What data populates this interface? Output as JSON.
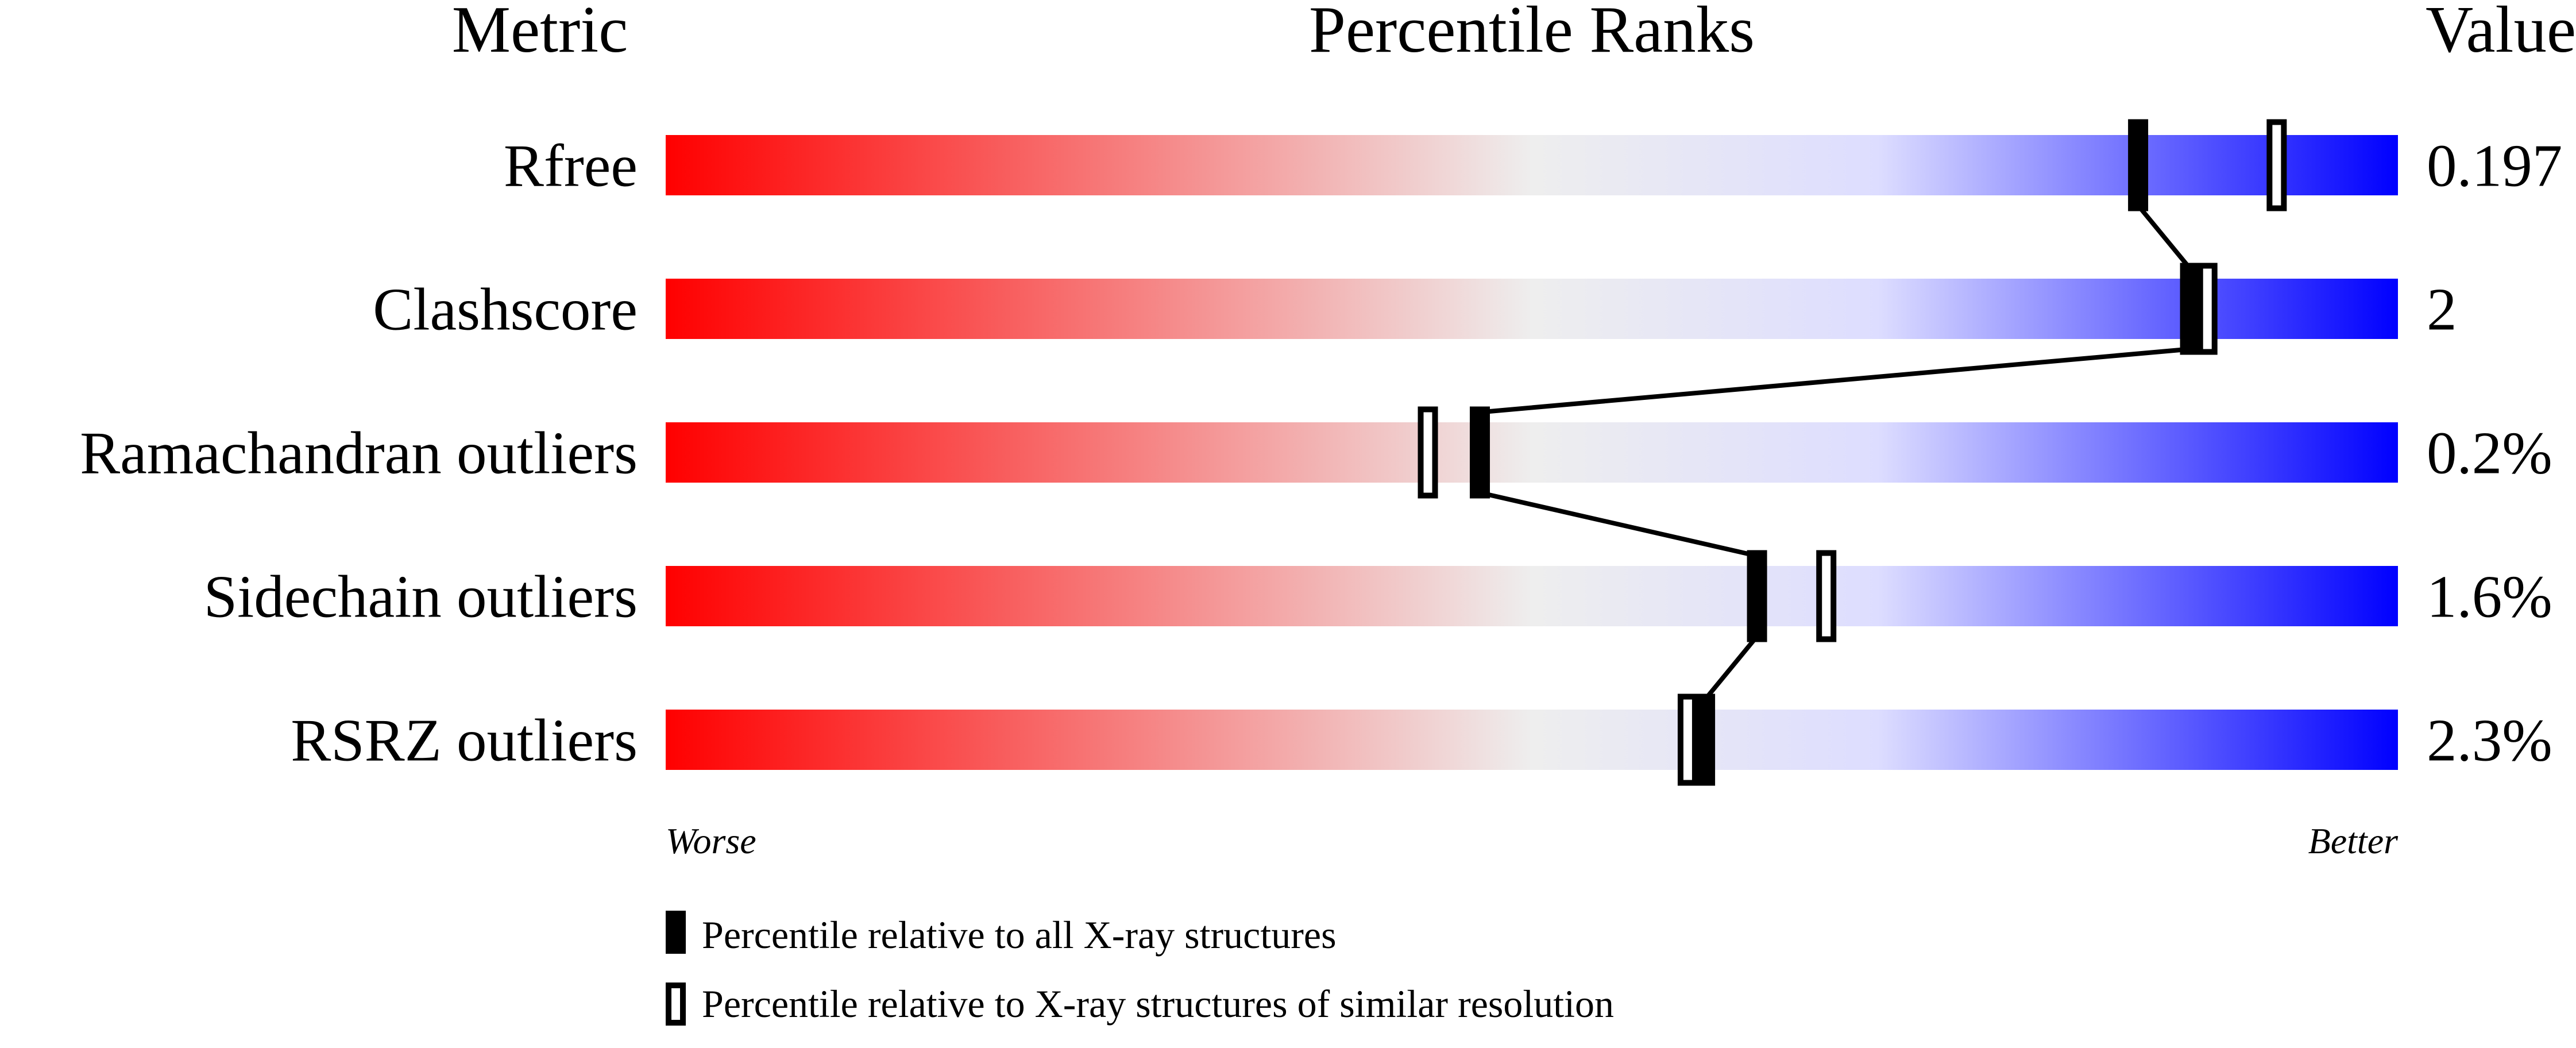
{
  "chart_data": {
    "type": "percentile-slider",
    "headers": {
      "metric": "Metric",
      "ranks": "Percentile Ranks",
      "value": "Value"
    },
    "xlim": [
      0,
      100
    ],
    "axis_labels": {
      "left": "Worse",
      "right": "Better"
    },
    "gradient_colors": [
      "#ff0000",
      "#eeeeee",
      "#ddddff",
      "#0000ff"
    ],
    "metrics": [
      {
        "name": "Rfree",
        "value": "0.197",
        "percentile_all": 85,
        "percentile_similar": 93
      },
      {
        "name": "Clashscore",
        "value": "2",
        "percentile_all": 88,
        "percentile_similar": 89
      },
      {
        "name": "Ramachandran outliers",
        "value": "0.2%",
        "percentile_all": 47,
        "percentile_similar": 44
      },
      {
        "name": "Sidechain outliers",
        "value": "1.6%",
        "percentile_all": 63,
        "percentile_similar": 67
      },
      {
        "name": "RSRZ outliers",
        "value": "2.3%",
        "percentile_all": 60,
        "percentile_similar": 59
      }
    ],
    "legend": [
      {
        "marker": "filled",
        "label": "Percentile relative to all X-ray structures"
      },
      {
        "marker": "open",
        "label": "Percentile relative to X-ray structures of similar resolution"
      }
    ]
  }
}
